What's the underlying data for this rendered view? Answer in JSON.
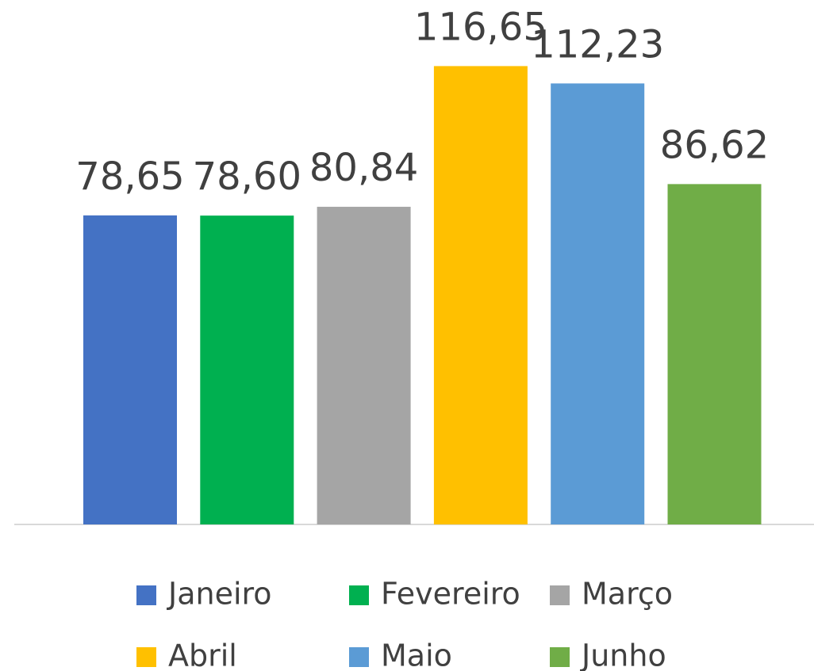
{
  "chart_data": {
    "type": "bar",
    "categories": [
      "Janeiro",
      "Fevereiro",
      "Março",
      "Abril",
      "Maio",
      "Junho"
    ],
    "values": [
      78.65,
      78.6,
      80.84,
      116.65,
      112.23,
      86.62
    ],
    "value_labels": [
      "78,65",
      "78,60",
      "80,84",
      "116,65",
      "112,23",
      "86,62"
    ],
    "colors": [
      "#4472c4",
      "#00b050",
      "#a5a5a5",
      "#ffc000",
      "#5b9bd5",
      "#70ad47"
    ]
  }
}
